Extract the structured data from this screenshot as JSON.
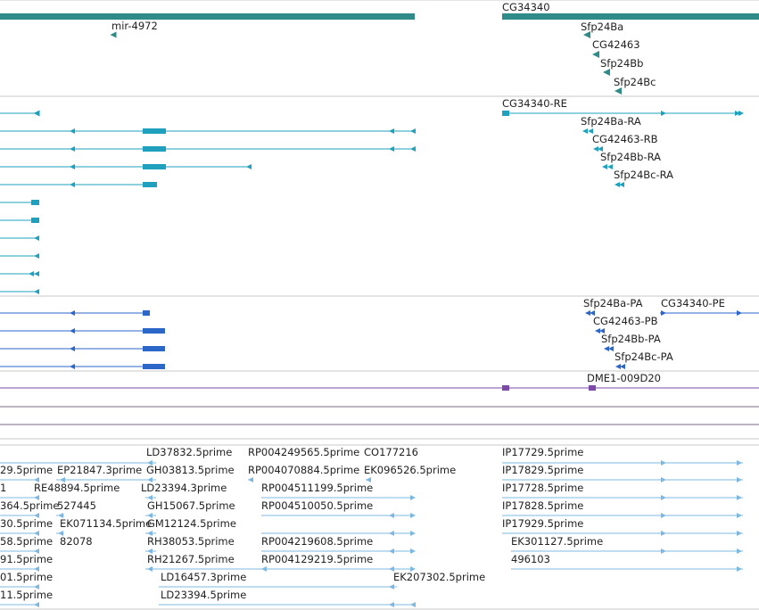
{
  "colors": {
    "gene": "#2e8b87",
    "transcript": "#1fa1be",
    "protein": "#2c66c8",
    "repeat": "#7d4aa8",
    "est": "#7db8e0",
    "separator": "#c8c8c8",
    "dark_separator": "#7b6b8e"
  },
  "tracks": {
    "genes": {
      "labels": [
        "mir-4972",
        "CG34340",
        "Sfp24Ba",
        "CG42463",
        "Sfp24Bb",
        "Sfp24Bc"
      ]
    },
    "transcripts": {
      "labels": [
        "CG34340-RE",
        "Sfp24Ba-RA",
        "CG42463-RB",
        "Sfp24Bb-RA",
        "Sfp24Bc-RA"
      ]
    },
    "proteins": {
      "labels": [
        "Sfp24Ba-PA",
        "CG34340-PE",
        "CG42463-PB",
        "Sfp24Bb-PA",
        "Sfp24Bc-PA"
      ]
    },
    "repeats": {
      "labels": [
        "DME1-009D20"
      ]
    },
    "ests": {
      "labels": [
        "LD37832.5prime",
        "RP004249565.5prime",
        "CO177216",
        "IP17729.5prime",
        "29.5prime",
        "EP21847.3prime",
        "GH03813.5prime",
        "RP004070884.5prime",
        "EK096526.5prime",
        "IP17829.5prime",
        "1",
        "RE48894.5prime",
        "LD23394.3prime",
        "RP004511199.5prime",
        "IP17728.5prime",
        "364.5prime",
        "527445",
        "GH15067.5prime",
        "RP004510050.5prime",
        "IP17828.5prime",
        "30.5prime",
        "EK071134.5prime",
        "GM12124.5prime",
        "IP17929.5prime",
        "58.5prime",
        "82078",
        "RH38053.5prime",
        "RP004219608.5prime",
        "EK301127.5prime",
        "91.5prime",
        "RH21267.5prime",
        "RP004129219.5prime",
        "496103",
        "01.5prime",
        "LD16457.3prime",
        "EK207302.5prime",
        "11.5prime",
        "LD23394.5prime"
      ]
    }
  }
}
